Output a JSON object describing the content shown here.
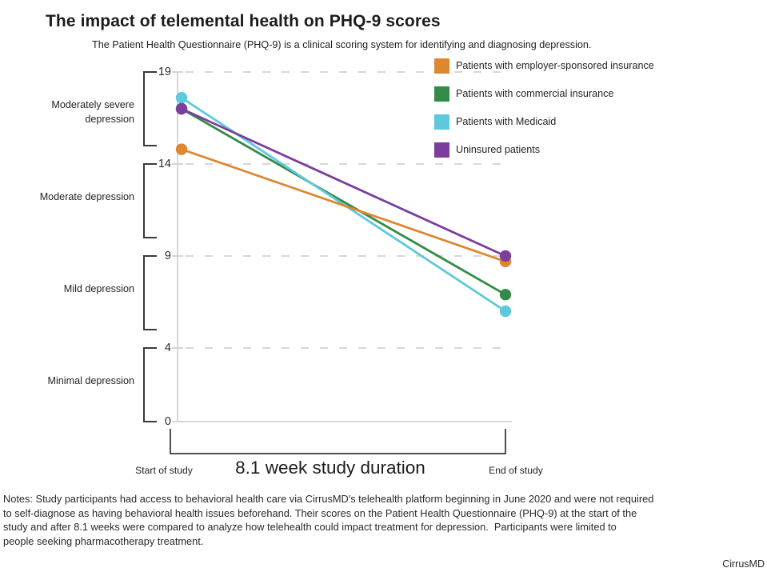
{
  "page": {
    "background": "#ffffff"
  },
  "header": {
    "title": "The impact of telemental health on PHQ-9 scores",
    "subtitle": "The Patient Health Questionnaire (PHQ-9) is a clinical scoring system for identifying and diagnosing depression."
  },
  "chart_data": {
    "type": "line",
    "subtype": "slope-chart",
    "x_categories": [
      "Start of study",
      "End of study"
    ],
    "x_annotation": "8.1 week study duration",
    "ylim": [
      0,
      19
    ],
    "yticks": [
      19,
      14,
      9,
      4,
      0
    ],
    "grid": "dashed horizontal gridlines at 19, 14, 9 and 4; solid light baseline at 0",
    "legend_position": "top-right",
    "severity_bands": [
      {
        "label": "Moderately severe depression",
        "range": [
          15,
          19
        ]
      },
      {
        "label": "Moderate depression",
        "range": [
          10,
          14
        ]
      },
      {
        "label": "Mild depression",
        "range": [
          5,
          9
        ]
      },
      {
        "label": "Minimal depression",
        "range": [
          0,
          4
        ]
      }
    ],
    "series": [
      {
        "name": "Patients with employer-sponsored insurance",
        "color": "#DE8731",
        "values": [
          14.8,
          8.7
        ]
      },
      {
        "name": "Patients with commercial insurance",
        "color": "#338B47",
        "values": [
          17.0,
          6.9
        ]
      },
      {
        "name": "Patients with Medicaid",
        "color": "#5FC8DC",
        "values": [
          17.6,
          6.0
        ]
      },
      {
        "name": "Uninsured patients",
        "color": "#7B3E9C",
        "values": [
          17.0,
          9.0
        ]
      }
    ],
    "colors": {
      "grid": "#cbcbcb",
      "bracket": "#3a3a3a",
      "text": "#262324"
    }
  },
  "footer": {
    "notes_lines": [
      "Notes: Study participants had access to behavioral health care via CirrusMD's telehealth platform beginning in June 2020 and were not required",
      "to self-diagnose as having behavioral health issues beforehand. Their scores on the Patient Health Questionnaire (PHQ-9) at the start of the",
      "study and after 8.1 weeks were compared to analyze how telehealth could impact treatment for depression.  Participants were limited to",
      "people seeking pharmacotherapy treatment."
    ],
    "brand": "CirrusMD"
  }
}
